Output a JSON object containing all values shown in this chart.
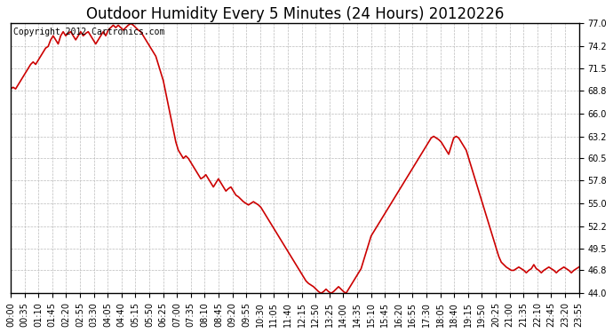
{
  "title": "Outdoor Humidity Every 5 Minutes (24 Hours) 20120226",
  "copyright_text": "Copyright 2012 Cartronics.com",
  "line_color": "#cc0000",
  "background_color": "#ffffff",
  "grid_color": "#bbbbbb",
  "y_ticks": [
    44.0,
    46.8,
    49.5,
    52.2,
    55.0,
    57.8,
    60.5,
    63.2,
    66.0,
    68.8,
    71.5,
    74.2,
    77.0
  ],
  "y_min": 44.0,
  "y_max": 77.0,
  "x_labels": [
    "00:00",
    "00:35",
    "01:10",
    "01:45",
    "02:20",
    "02:55",
    "03:30",
    "04:05",
    "04:40",
    "05:15",
    "05:50",
    "06:25",
    "07:00",
    "07:35",
    "08:10",
    "08:45",
    "09:20",
    "09:55",
    "10:30",
    "11:05",
    "11:40",
    "12:15",
    "12:50",
    "13:25",
    "14:00",
    "14:35",
    "15:10",
    "15:45",
    "16:20",
    "16:55",
    "17:30",
    "18:05",
    "18:40",
    "19:15",
    "19:50",
    "20:25",
    "21:00",
    "21:35",
    "22:10",
    "22:45",
    "23:20",
    "23:55"
  ],
  "humidity_values": [
    69.0,
    69.2,
    69.0,
    69.5,
    70.0,
    70.5,
    71.0,
    71.5,
    72.0,
    72.3,
    72.0,
    72.5,
    73.0,
    73.5,
    74.0,
    74.2,
    75.0,
    75.5,
    75.0,
    74.5,
    75.5,
    76.0,
    75.5,
    75.8,
    76.0,
    75.5,
    75.0,
    75.5,
    76.0,
    75.5,
    75.8,
    76.0,
    75.5,
    75.0,
    74.5,
    75.0,
    75.5,
    76.0,
    75.5,
    76.2,
    76.5,
    76.8,
    76.5,
    76.8,
    76.5,
    76.2,
    76.5,
    76.8,
    77.0,
    76.8,
    76.5,
    76.2,
    76.0,
    75.5,
    75.0,
    74.5,
    74.0,
    73.5,
    73.0,
    72.0,
    71.0,
    70.0,
    68.5,
    67.0,
    65.5,
    64.0,
    62.5,
    61.5,
    61.0,
    60.5,
    60.8,
    60.5,
    60.0,
    59.5,
    59.0,
    58.5,
    58.0,
    58.2,
    58.5,
    58.0,
    57.5,
    57.0,
    57.5,
    58.0,
    57.5,
    57.0,
    56.5,
    56.8,
    57.0,
    56.5,
    56.0,
    55.8,
    55.5,
    55.2,
    55.0,
    54.8,
    55.0,
    55.2,
    55.0,
    54.8,
    54.5,
    54.0,
    53.5,
    53.0,
    52.5,
    52.0,
    51.5,
    51.0,
    50.5,
    50.0,
    49.5,
    49.0,
    48.5,
    48.0,
    47.5,
    47.0,
    46.5,
    46.0,
    45.5,
    45.2,
    45.0,
    44.8,
    44.5,
    44.2,
    44.0,
    44.2,
    44.5,
    44.2,
    44.0,
    44.2,
    44.5,
    44.8,
    44.5,
    44.2,
    44.0,
    44.5,
    45.0,
    45.5,
    46.0,
    46.5,
    47.0,
    48.0,
    49.0,
    50.0,
    51.0,
    51.5,
    52.0,
    52.5,
    53.0,
    53.5,
    54.0,
    54.5,
    55.0,
    55.5,
    56.0,
    56.5,
    57.0,
    57.5,
    58.0,
    58.5,
    59.0,
    59.5,
    60.0,
    60.5,
    61.0,
    61.5,
    62.0,
    62.5,
    63.0,
    63.2,
    63.0,
    62.8,
    62.5,
    62.0,
    61.5,
    61.0,
    62.0,
    63.0,
    63.2,
    63.0,
    62.5,
    62.0,
    61.5,
    60.5,
    59.5,
    58.5,
    57.5,
    56.5,
    55.5,
    54.5,
    53.5,
    52.5,
    51.5,
    50.5,
    49.5,
    48.5,
    47.8,
    47.5,
    47.2,
    47.0,
    46.8,
    46.8,
    47.0,
    47.2,
    47.0,
    46.8,
    46.5,
    46.8,
    47.0,
    47.5,
    47.0,
    46.8,
    46.5,
    46.8,
    47.0,
    47.2,
    47.0,
    46.8,
    46.5,
    46.8,
    47.0,
    47.2,
    47.0,
    46.8,
    46.5,
    46.8,
    47.0,
    47.2
  ],
  "title_fontsize": 12,
  "tick_fontsize": 7,
  "copyright_fontsize": 7
}
